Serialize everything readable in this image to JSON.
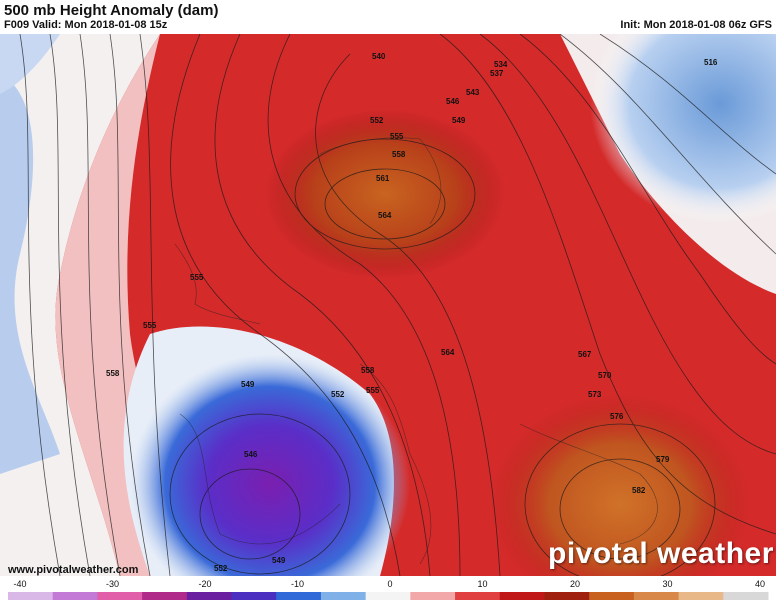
{
  "header": {
    "title": "500 mb Height Anomaly (dam)",
    "valid": "F009 Valid: Mon 2018-01-08 15z",
    "init": "Init: Mon 2018-01-08 06z GFS"
  },
  "footer": {
    "website": "www.pivotalweather.com",
    "logo": "pivotal weather"
  },
  "colorbar": {
    "ticks": [
      "-40",
      "-30",
      "-20",
      "-10",
      "0",
      "10",
      "20",
      "30",
      "40"
    ],
    "colors": [
      "#d9b8e8",
      "#c27ad6",
      "#e05fa8",
      "#b02a8a",
      "#6a1fa0",
      "#4a2fc0",
      "#2f6ad8",
      "#7fb0e8",
      "#f4f4f4",
      "#f2a8a8",
      "#e04040",
      "#c01818",
      "#a02010",
      "#c86020",
      "#d88848",
      "#e8b888",
      "#d8d8d8"
    ]
  },
  "contour_labels": [
    "516",
    "534",
    "537",
    "540",
    "543",
    "546",
    "549",
    "552",
    "555",
    "558",
    "561",
    "564",
    "567",
    "570",
    "573",
    "576",
    "579",
    "582"
  ],
  "map_labels": [
    {
      "text": "540"
    },
    {
      "text": "534"
    },
    {
      "text": "537"
    },
    {
      "text": "543"
    },
    {
      "text": "546"
    },
    {
      "text": "549"
    },
    {
      "text": "552"
    },
    {
      "text": "555"
    },
    {
      "text": "558"
    },
    {
      "text": "561"
    },
    {
      "text": "564"
    },
    {
      "text": "555"
    },
    {
      "text": "555"
    },
    {
      "text": "558"
    },
    {
      "text": "549"
    },
    {
      "text": "552"
    },
    {
      "text": "558"
    },
    {
      "text": "555"
    },
    {
      "text": "564"
    },
    {
      "text": "567"
    },
    {
      "text": "570"
    },
    {
      "text": "573"
    },
    {
      "text": "576"
    },
    {
      "text": "579"
    },
    {
      "text": "582"
    },
    {
      "text": "546"
    },
    {
      "text": "549"
    },
    {
      "text": "552"
    },
    {
      "text": "516"
    }
  ]
}
